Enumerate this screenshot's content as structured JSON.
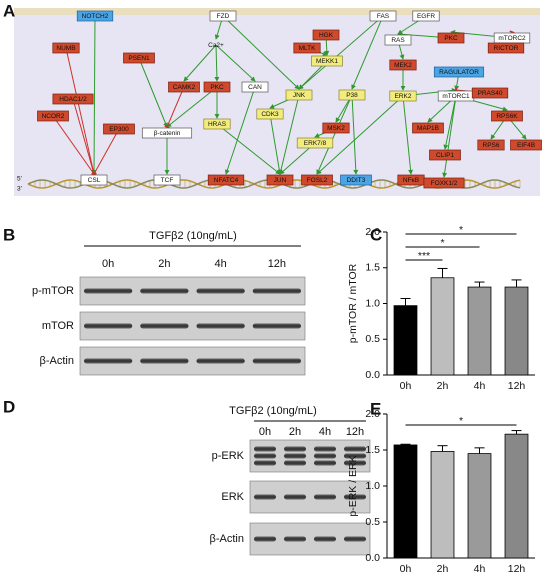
{
  "panel_labels": [
    "A",
    "B",
    "C",
    "D",
    "E"
  ],
  "pathway": {
    "dna_ends": [
      "5'",
      "3'"
    ],
    "nodes": [
      {
        "label": "NOTCH2",
        "kind": "blue"
      },
      {
        "label": "FZD",
        "kind": "white"
      },
      {
        "label": "FAS",
        "kind": "white"
      },
      {
        "label": "EGFR",
        "kind": "white"
      },
      {
        "label": "NUMB",
        "kind": "red"
      },
      {
        "label": "PSEN1",
        "kind": "red"
      },
      {
        "label": "HGK",
        "kind": "red"
      },
      {
        "label": "MLTK",
        "kind": "red"
      },
      {
        "label": "MEKK1",
        "kind": "yellow"
      },
      {
        "label": "Ca2+",
        "kind": "text"
      },
      {
        "label": "RAS",
        "kind": "white"
      },
      {
        "label": "PKC",
        "kind": "red"
      },
      {
        "label": "mTORC2",
        "kind": "white"
      },
      {
        "label": "RICTOR",
        "kind": "red"
      },
      {
        "label": "MEK2",
        "kind": "red"
      },
      {
        "label": "RAGULATOR",
        "kind": "blue"
      },
      {
        "label": "CAMK2",
        "kind": "red"
      },
      {
        "label": "PKC",
        "kind": "red"
      },
      {
        "label": "CAN",
        "kind": "white"
      },
      {
        "label": "JNK",
        "kind": "yellow"
      },
      {
        "label": "P38",
        "kind": "yellow"
      },
      {
        "label": "ERK2",
        "kind": "yellow"
      },
      {
        "label": "mTORC1",
        "kind": "white"
      },
      {
        "label": "PRAS40",
        "kind": "red"
      },
      {
        "label": "HDAC1/2",
        "kind": "red"
      },
      {
        "label": "NCOR2",
        "kind": "red"
      },
      {
        "label": "EP300",
        "kind": "red"
      },
      {
        "label": "β-catenin",
        "kind": "white"
      },
      {
        "label": "HRAS",
        "kind": "yellow"
      },
      {
        "label": "CDK3",
        "kind": "yellow"
      },
      {
        "label": "MSK2",
        "kind": "red"
      },
      {
        "label": "MAP1B",
        "kind": "red"
      },
      {
        "label": "RPS6K",
        "kind": "red"
      },
      {
        "label": "ERK7/8",
        "kind": "yellow"
      },
      {
        "label": "CLIP1",
        "kind": "red"
      },
      {
        "label": "RPS6",
        "kind": "red"
      },
      {
        "label": "EIF4B",
        "kind": "red"
      },
      {
        "label": "CSL",
        "kind": "white"
      },
      {
        "label": "TCF",
        "kind": "white"
      },
      {
        "label": "NFATC4",
        "kind": "red"
      },
      {
        "label": "JUN",
        "kind": "red"
      },
      {
        "label": "FOSL2",
        "kind": "red"
      },
      {
        "label": "DDIT3",
        "kind": "blue"
      },
      {
        "label": "NFκB",
        "kind": "red"
      },
      {
        "label": "FOXK1/2",
        "kind": "red"
      }
    ]
  },
  "blot_b": {
    "treatment": "TGFβ2 (10ng/mL)",
    "lanes": [
      "0h",
      "2h",
      "4h",
      "12h"
    ],
    "rows": [
      "p-mTOR",
      "mTOR",
      "β-Actin"
    ]
  },
  "blot_d": {
    "treatment": "TGFβ2 (10ng/mL)",
    "lanes": [
      "0h",
      "2h",
      "4h",
      "12h"
    ],
    "rows": [
      "p-ERK",
      "ERK",
      "β-Actin"
    ]
  },
  "chart_data": [
    {
      "type": "bar",
      "ylabel": "p-mTOR / mTOR",
      "categories": [
        "0h",
        "2h",
        "4h",
        "12h"
      ],
      "values": [
        0.97,
        1.36,
        1.23,
        1.23
      ],
      "errors": [
        0.1,
        0.13,
        0.07,
        0.1
      ],
      "colors": [
        "#000000",
        "#bdbdbd",
        "#9a9a9a",
        "#888888"
      ],
      "ylim": [
        0,
        2.0
      ],
      "yticks": [
        {
          "value": 0,
          "label": "0.0"
        },
        {
          "value": 0.5,
          "label": "0.5"
        },
        {
          "value": 1.0,
          "label": "1.0"
        },
        {
          "value": 1.5,
          "label": "1.5"
        },
        {
          "value": 2.0,
          "label": "2.0"
        }
      ],
      "significance": [
        {
          "label": "***",
          "from": "0h",
          "to": "2h"
        },
        {
          "label": "*",
          "from": "0h",
          "to": "4h"
        },
        {
          "label": "*",
          "from": "0h",
          "to": "12h"
        }
      ]
    },
    {
      "type": "bar",
      "ylabel": "p-ERK / ERK",
      "categories": [
        "0h",
        "2h",
        "4h",
        "12h"
      ],
      "values": [
        1.57,
        1.48,
        1.45,
        1.72
      ],
      "errors": [
        0.01,
        0.08,
        0.08,
        0.05
      ],
      "colors": [
        "#000000",
        "#bdbdbd",
        "#9a9a9a",
        "#888888"
      ],
      "ylim": [
        0,
        2.0
      ],
      "yticks": [
        {
          "value": 0,
          "label": "0.0"
        },
        {
          "value": 0.5,
          "label": "0.5"
        },
        {
          "value": 1.0,
          "label": "1.0"
        },
        {
          "value": 1.5,
          "label": "1.5"
        },
        {
          "value": 2.0,
          "label": "2.0"
        }
      ],
      "significance": [
        {
          "label": "*",
          "from": "0h",
          "to": "12h"
        }
      ]
    }
  ]
}
